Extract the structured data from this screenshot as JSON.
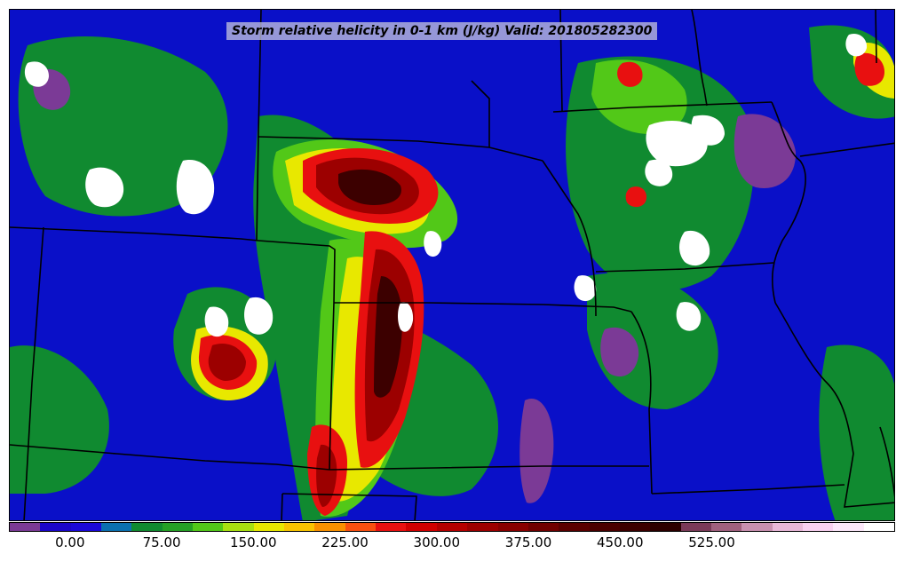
{
  "title": "Storm relative helicity in 0-1 km (J/kg) Valid: 201805282300",
  "colorbar": {
    "colors": [
      "#7b3a96",
      "#1a06c8",
      "#1a08d8",
      "#0a70b0",
      "#108a30",
      "#25a025",
      "#52c818",
      "#a8e010",
      "#e8e800",
      "#f8c400",
      "#f89000",
      "#f85010",
      "#e81010",
      "#d00000",
      "#b40000",
      "#9c0000",
      "#880000",
      "#700000",
      "#5a0000",
      "#4a0000",
      "#3c0000",
      "#2c0000",
      "#7a3a58",
      "#a0607e",
      "#c890b0",
      "#e8b8d8",
      "#f8d0f0",
      "#fce8fa",
      "#ffffff"
    ],
    "tick_labels": [
      "0.00",
      "75.00",
      "150.00",
      "225.00",
      "300.00",
      "375.00",
      "450.00",
      "525.00"
    ]
  },
  "palette": {
    "background": "#0a10c8",
    "green": "#108a30",
    "light_green": "#52c818",
    "yellow": "#e8e800",
    "orange": "#f89000",
    "red": "#e81010",
    "dark_red": "#9c0000",
    "darkest": "#3c0000",
    "purple": "#7b3a96",
    "white": "#ffffff",
    "boundary": "#000000"
  }
}
